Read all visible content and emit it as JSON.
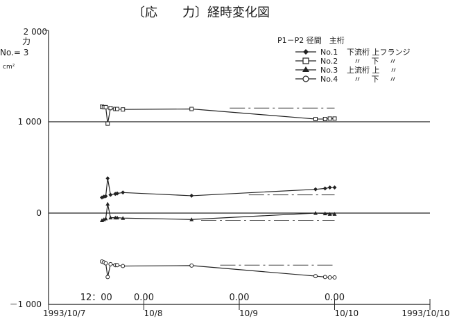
{
  "chart_data": {
    "type": "line",
    "title": "〔応　　力〕経時変化図",
    "y_label_top": "2 000",
    "y_label_unit": "力",
    "y_label_no": "No.= 3",
    "y_label_cm": "cm²",
    "ylim": [
      -1000,
      2000
    ],
    "y_ticks": [
      {
        "value": 1000,
        "label": "1 000"
      },
      {
        "value": 0,
        "label": "0"
      },
      {
        "value": -1000,
        "label": "－1 000"
      }
    ],
    "x_ticks_bottom": [
      {
        "label": "1993/10/7",
        "x": 0
      },
      {
        "label": "10/8",
        "x": 1
      },
      {
        "label": "10/9",
        "x": 2
      },
      {
        "label": "10/10",
        "x": 3
      },
      {
        "label": "1993/10/10",
        "x": 4
      }
    ],
    "x_annotations_top": [
      {
        "label": "12：00",
        "x": 0.5
      },
      {
        "label": "0.00",
        "x": 1.0
      },
      {
        "label": "0.00",
        "x": 2.0
      },
      {
        "label": "0.00",
        "x": 3.0
      }
    ],
    "legend": {
      "header": "P1－P2 径間　主桁",
      "entries": [
        {
          "label": "No.1",
          "desc": "下流桁 上フランジ",
          "marker": "diamond"
        },
        {
          "label": "No.2",
          "desc": "〃　 下　 〃",
          "marker": "square"
        },
        {
          "label": "No.3",
          "desc": "上流桁 上　 〃",
          "marker": "triangle"
        },
        {
          "label": "No.4",
          "desc": "〃　 下　 〃",
          "marker": "circle"
        }
      ]
    },
    "series": [
      {
        "marker": "square",
        "x": [
          0.56,
          0.58,
          0.6,
          0.62,
          0.65,
          0.7,
          0.72,
          0.78,
          1.5,
          2.8,
          2.9,
          2.95,
          3.0
        ],
        "y": [
          1165,
          1160,
          1160,
          980,
          1150,
          1140,
          1140,
          1135,
          1140,
          1030,
          1030,
          1035,
          1035
        ]
      },
      {
        "marker": "diamond",
        "x": [
          0.56,
          0.58,
          0.6,
          0.62,
          0.65,
          0.7,
          0.72,
          0.78,
          1.5,
          2.8,
          2.9,
          2.95,
          3.0
        ],
        "y": [
          170,
          180,
          185,
          380,
          200,
          210,
          215,
          225,
          190,
          260,
          270,
          280,
          280
        ]
      },
      {
        "marker": "triangle",
        "x": [
          0.56,
          0.58,
          0.6,
          0.62,
          0.65,
          0.7,
          0.72,
          0.78,
          1.5,
          2.8,
          2.9,
          2.95,
          3.0
        ],
        "y": [
          -80,
          -70,
          -60,
          100,
          -50,
          -50,
          -50,
          -55,
          -70,
          0,
          -5,
          -10,
          -10
        ]
      },
      {
        "marker": "circle",
        "x": [
          0.56,
          0.58,
          0.6,
          0.62,
          0.65,
          0.7,
          0.72,
          0.78,
          1.5,
          2.8,
          2.9,
          2.95,
          3.0
        ],
        "y": [
          -530,
          -540,
          -550,
          -700,
          -560,
          -570,
          -570,
          -580,
          -575,
          -690,
          -700,
          -705,
          -705
        ]
      }
    ],
    "reference_lines": [
      {
        "x": [
          1.9,
          3.0
        ],
        "y": [
          1150,
          1150
        ],
        "style": "dash-dot"
      },
      {
        "x": [
          2.1,
          3.0
        ],
        "y": [
          200,
          200
        ],
        "style": "dash-dot"
      },
      {
        "x": [
          1.6,
          3.0
        ],
        "y": [
          -80,
          -80
        ],
        "style": "dash-dot"
      },
      {
        "x": [
          1.8,
          3.0
        ],
        "y": [
          -570,
          -570
        ],
        "style": "dash-dot"
      }
    ],
    "xlim": [
      0,
      4
    ],
    "grid": "horizontal lines at 1000, 0, -1000"
  }
}
